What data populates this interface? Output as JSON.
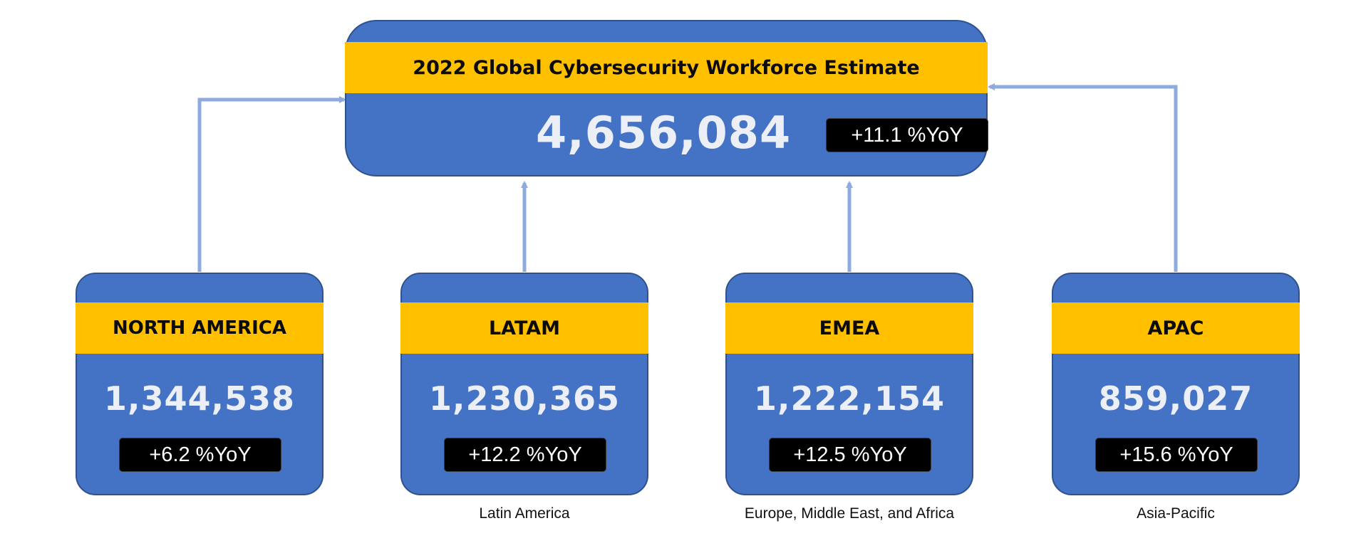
{
  "global": {
    "title": "2022 Global Cybersecurity Workforce Estimate",
    "value": "4,656,084",
    "yoy": "+11.1 %YoY"
  },
  "regions": [
    {
      "name": "NORTH AMERICA",
      "value": "1,344,538",
      "yoy": "+6.2 %YoY",
      "caption": ""
    },
    {
      "name": "LATAM",
      "value": "1,230,365",
      "yoy": "+12.2 %YoY",
      "caption": "Latin America"
    },
    {
      "name": "EMEA",
      "value": "1,222,154",
      "yoy": "+12.5 %YoY",
      "caption": "Europe, Middle East, and Africa"
    },
    {
      "name": "APAC",
      "value": "859,027",
      "yoy": "+15.6 %YoY",
      "caption": "Asia-Pacific"
    }
  ],
  "colors": {
    "box_fill": "#4472c4",
    "band_fill": "#ffc000",
    "connector": "#8faadc",
    "badge_fill": "#000000"
  }
}
